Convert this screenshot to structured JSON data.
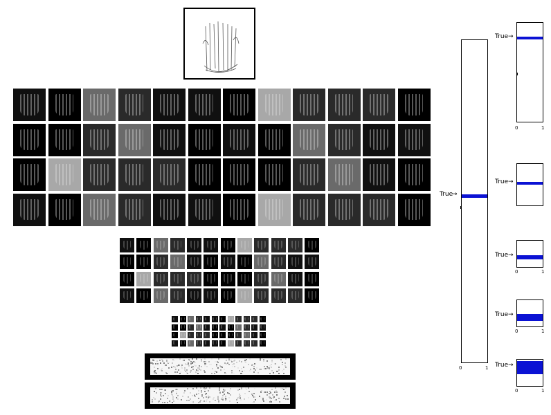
{
  "layers": {
    "conv1": {
      "rows": 4,
      "cols": 12
    },
    "conv2": {
      "rows": 4,
      "cols": 12
    },
    "conv3": {
      "rows": 4,
      "cols": 12
    }
  },
  "predictions": {
    "main": {
      "label": "True",
      "axis": [
        "0",
        "1"
      ]
    },
    "panels": [
      {
        "label": "True",
        "axis": [
          "0",
          "1"
        ]
      },
      {
        "label": "True",
        "axis": []
      },
      {
        "label": "True",
        "axis": [
          "0",
          "1"
        ]
      },
      {
        "label": "True",
        "axis": [
          "0",
          "1"
        ]
      },
      {
        "label": "True",
        "axis": [
          "0",
          "1"
        ]
      }
    ]
  },
  "colors": {
    "bar": "#0b12d4",
    "background": "#ffffff"
  }
}
